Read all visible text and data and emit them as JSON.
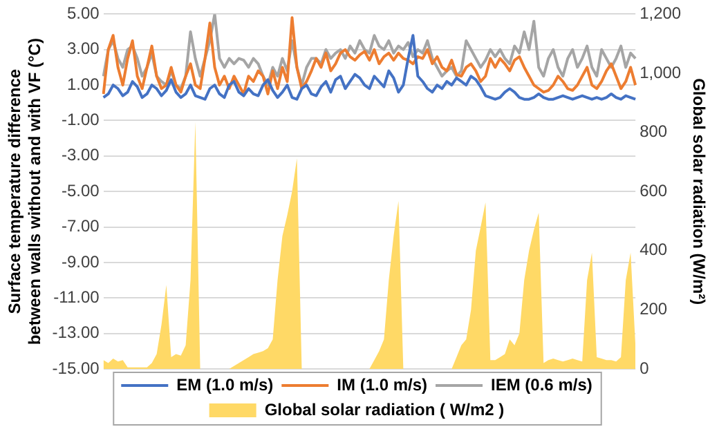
{
  "chart_data": {
    "type": "line",
    "ylabel": "Surface temperature difference between walls without and with VF (°C)",
    "y2label": "Global solar radiation (W/m²)",
    "categories": [
      null,
      null,
      null,
      null,
      null,
      null,
      null,
      null,
      null,
      null,
      null,
      null,
      null,
      null,
      null,
      null,
      null,
      null,
      null,
      null,
      null,
      null,
      null,
      null,
      null,
      null,
      null,
      null,
      null,
      null,
      null,
      null,
      null,
      null,
      null,
      null,
      null,
      null,
      null,
      null,
      null,
      null,
      null,
      null,
      null,
      null,
      null,
      null,
      null,
      null,
      null,
      null,
      null,
      null,
      null,
      null,
      null,
      null,
      null,
      null,
      null,
      null,
      null,
      null,
      null,
      null,
      null,
      null,
      null,
      null,
      null,
      null,
      null,
      null,
      null,
      null,
      null,
      null,
      null,
      null,
      null,
      null,
      null,
      null,
      null,
      null,
      null,
      null,
      null,
      null,
      null,
      null,
      null,
      null,
      null,
      null,
      null,
      null,
      null,
      null,
      null,
      null,
      null,
      null,
      null,
      null,
      null,
      null,
      null,
      null,
      null
    ],
    "series": [
      {
        "name": "Global solar radiation ( W/m2 )",
        "type": "area",
        "axis": "y2",
        "color": "#ffd966",
        "values": [
          30,
          20,
          35,
          25,
          30,
          5,
          5,
          5,
          5,
          5,
          20,
          50,
          150,
          284,
          40,
          50,
          45,
          80,
          300,
          836,
          0,
          0,
          0,
          0,
          0,
          0,
          0,
          10,
          20,
          30,
          40,
          50,
          55,
          60,
          70,
          100,
          300,
          450,
          520,
          600,
          712,
          0,
          0,
          0,
          0,
          0,
          0,
          0,
          0,
          0,
          0,
          0,
          0,
          0,
          0,
          0,
          30,
          60,
          100,
          300,
          450,
          568,
          0,
          0,
          0,
          0,
          0,
          0,
          0,
          0,
          0,
          0,
          0,
          40,
          80,
          100,
          200,
          400,
          480,
          563,
          30,
          30,
          40,
          50,
          100,
          80,
          120,
          300,
          400,
          470,
          528,
          20,
          30,
          35,
          30,
          25,
          30,
          35,
          30,
          25,
          300,
          393,
          40,
          35,
          30,
          30,
          25,
          40,
          300,
          393,
          80
        ]
      },
      {
        "name": "EM (1.0 m/s)",
        "color": "#4472c4",
        "values": [
          0.3,
          0.5,
          1.0,
          0.8,
          0.4,
          0.6,
          1.2,
          0.9,
          0.3,
          0.5,
          1.0,
          0.8,
          0.4,
          0.7,
          1.3,
          0.6,
          0.3,
          0.5,
          1.0,
          0.4,
          0.3,
          0.2,
          0.8,
          1.0,
          0.5,
          0.3,
          1.0,
          1.2,
          0.6,
          0.4,
          0.8,
          0.5,
          0.4,
          1.0,
          1.3,
          0.7,
          0.3,
          0.6,
          1.0,
          0.3,
          0.2,
          0.8,
          1.0,
          0.5,
          0.4,
          0.9,
          1.2,
          0.6,
          1.3,
          1.5,
          0.8,
          1.2,
          1.6,
          1.4,
          1.0,
          0.8,
          1.5,
          1.2,
          0.9,
          1.8,
          1.4,
          0.6,
          1.0,
          2.5,
          3.8,
          1.5,
          1.2,
          0.8,
          0.6,
          1.0,
          0.8,
          1.2,
          1.0,
          1.4,
          1.2,
          1.0,
          1.5,
          1.3,
          0.9,
          0.4,
          0.3,
          0.2,
          0.3,
          0.6,
          0.8,
          0.6,
          0.3,
          0.2,
          0.2,
          0.3,
          0.5,
          0.3,
          0.2,
          0.2,
          0.3,
          0.4,
          0.3,
          0.2,
          0.3,
          0.4,
          0.3,
          0.2,
          0.3,
          0.2,
          0.3,
          0.5,
          0.3,
          0.2,
          0.4,
          0.3,
          0.2
        ]
      },
      {
        "name": "IM (1.0 m/s)",
        "color": "#ed7d31",
        "values": [
          0.5,
          3.0,
          3.8,
          2.0,
          1.0,
          2.5,
          3.5,
          1.5,
          0.8,
          2.0,
          3.2,
          1.5,
          0.8,
          1.0,
          2.0,
          1.0,
          0.6,
          1.5,
          2.2,
          1.0,
          0.8,
          2.5,
          4.5,
          2.0,
          1.0,
          1.5,
          0.8,
          1.5,
          1.0,
          0.5,
          1.5,
          1.2,
          1.8,
          1.5,
          0.5,
          1.8,
          0.8,
          2.0,
          1.2,
          4.8,
          2.0,
          0.8,
          1.2,
          1.8,
          2.5,
          2.0,
          2.8,
          1.8,
          2.2,
          2.8,
          3.0,
          2.6,
          2.4,
          2.7,
          2.9,
          2.4,
          3.0,
          2.2,
          2.6,
          2.8,
          2.4,
          2.8,
          2.5,
          2.4,
          2.2,
          2.6,
          2.5,
          3.0,
          2.2,
          2.6,
          2.0,
          1.8,
          2.4,
          1.6,
          1.5,
          2.0,
          2.2,
          1.8,
          1.2,
          1.5,
          2.5,
          2.0,
          2.5,
          2.2,
          1.8,
          2.4,
          2.6,
          2.0,
          1.5,
          1.0,
          0.8,
          0.6,
          0.7,
          1.0,
          1.5,
          1.2,
          0.8,
          0.7,
          1.0,
          1.5,
          2.0,
          1.0,
          0.8,
          1.2,
          1.8,
          2.2,
          1.5,
          0.8,
          1.2,
          2.0,
          1.0
        ]
      },
      {
        "name": "IEM (0.6 m/s)",
        "color": "#a5a5a5",
        "values": [
          1.5,
          3.0,
          3.5,
          2.5,
          2.0,
          3.0,
          3.2,
          2.5,
          1.5,
          2.0,
          2.8,
          1.5,
          1.2,
          1.0,
          1.8,
          1.0,
          0.8,
          1.5,
          4.0,
          2.5,
          1.5,
          2.5,
          3.5,
          5.0,
          2.5,
          2.0,
          2.5,
          2.2,
          2.5,
          2.4,
          2.0,
          2.5,
          2.2,
          1.5,
          1.0,
          2.0,
          1.5,
          2.5,
          1.8,
          3.5,
          2.0,
          1.0,
          2.0,
          2.5,
          2.5,
          2.2,
          3.0,
          2.5,
          2.8,
          3.0,
          2.5,
          3.2,
          2.8,
          3.5,
          3.0,
          2.8,
          3.8,
          3.2,
          3.0,
          3.5,
          2.8,
          3.2,
          3.0,
          3.4,
          2.6,
          3.0,
          2.8,
          3.5,
          2.5,
          2.0,
          1.5,
          1.8,
          2.0,
          1.5,
          1.8,
          3.5,
          3.0,
          2.5,
          2.0,
          2.4,
          3.0,
          2.6,
          3.0,
          2.5,
          2.2,
          3.2,
          2.8,
          4.0,
          3.0,
          4.6,
          2.0,
          1.5,
          2.5,
          3.0,
          2.0,
          1.5,
          2.5,
          3.0,
          2.0,
          2.5,
          3.2,
          2.0,
          1.5,
          3.0,
          2.5,
          2.0,
          2.5,
          3.2,
          2.0,
          2.8,
          2.5
        ]
      }
    ],
    "ylim": [
      -15,
      5
    ],
    "yticks": [
      {
        "value": 5,
        "label": "5.00"
      },
      {
        "value": 3,
        "label": "3.00"
      },
      {
        "value": 1,
        "label": "1.00"
      },
      {
        "value": -1,
        "label": "-1.00"
      },
      {
        "value": -3,
        "label": "-3.00"
      },
      {
        "value": -5,
        "label": "-5.00"
      },
      {
        "value": -7,
        "label": "-7.00"
      },
      {
        "value": -9,
        "label": "-9.00"
      },
      {
        "value": -11,
        "label": "-11.00"
      },
      {
        "value": -13,
        "label": "-13.00"
      },
      {
        "value": -15,
        "label": "-15.00"
      }
    ],
    "y2lim": [
      0,
      1200
    ],
    "y2ticks": [
      {
        "value": 0,
        "label": "0"
      },
      {
        "value": 200,
        "label": "200"
      },
      {
        "value": 400,
        "label": "400"
      },
      {
        "value": 600,
        "label": "600"
      },
      {
        "value": 800,
        "label": "800"
      },
      {
        "value": 1000,
        "label": "1,000"
      },
      {
        "value": 1200,
        "label": "1,200"
      }
    ],
    "grid": "y",
    "legend": "bottom",
    "marker": "none"
  }
}
